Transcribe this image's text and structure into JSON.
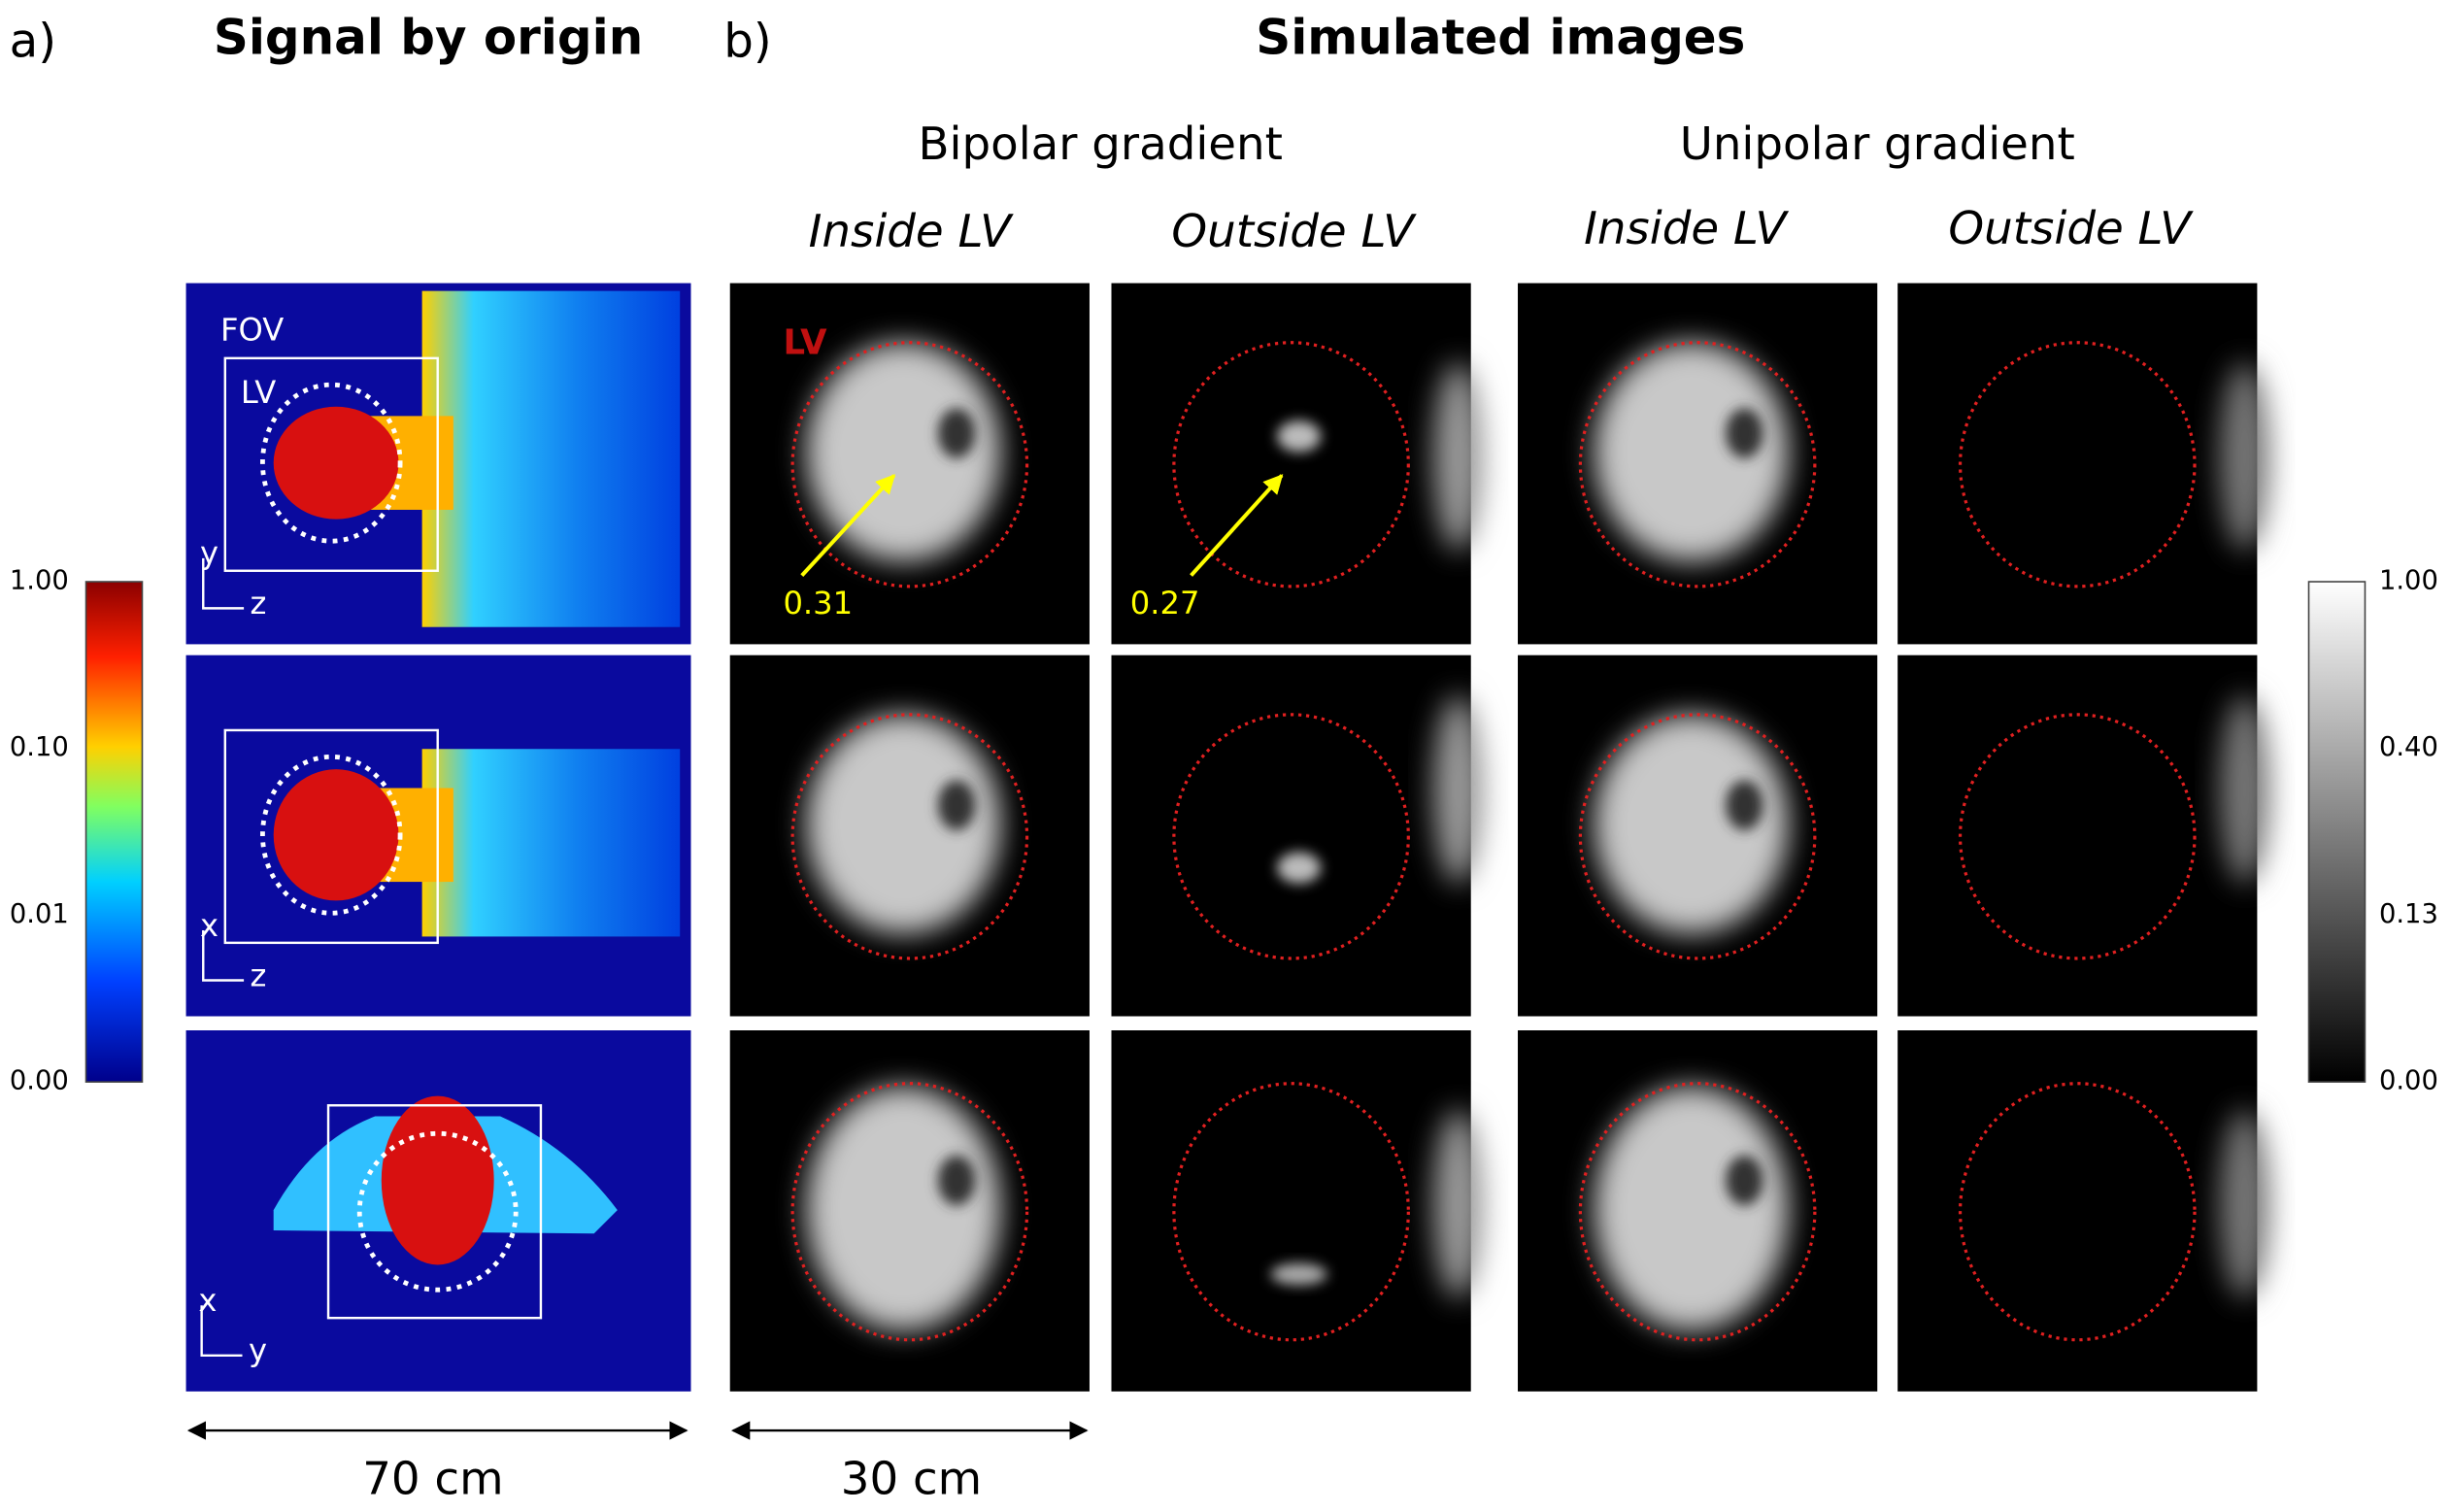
{
  "panel_a": {
    "label": "a)",
    "title": "Signal by origin",
    "fov_label": "FOV",
    "lv_label": "LV",
    "axes": [
      [
        "y",
        "z"
      ],
      [
        "x",
        "z"
      ],
      [
        "x",
        "y"
      ]
    ],
    "colorbar_ticks": [
      "1.00",
      "0.10",
      "0.01",
      "0.00"
    ],
    "scale_label": "70 cm"
  },
  "panel_b": {
    "label": "b)",
    "title": "Simulated images",
    "groups": [
      {
        "title": "Bipolar gradient",
        "columns": [
          "Inside LV",
          "Outside LV"
        ]
      },
      {
        "title": "Unipolar gradient",
        "columns": [
          "Inside LV",
          "Outside LV"
        ]
      }
    ],
    "lv_label": "LV",
    "annotations": [
      "0.31",
      "0.27"
    ],
    "colorbar_ticks": [
      "1.00",
      "0.40",
      "0.13",
      "0.00"
    ],
    "scale_label": "30 cm"
  }
}
